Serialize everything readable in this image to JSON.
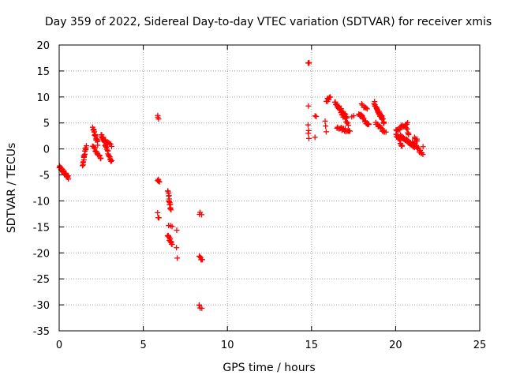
{
  "chart_data": {
    "type": "scatter",
    "title": "Day 359 of 2022, Sidereal Day-to-day VTEC variation (SDTVAR) for receiver xmis",
    "xlabel": "GPS time / hours",
    "ylabel": "SDTVAR / TECUs",
    "xlim": [
      0,
      25
    ],
    "ylim": [
      -35,
      20
    ],
    "xticks": [
      "0",
      "5",
      "10",
      "15",
      "20",
      "25"
    ],
    "yticks": [
      "-35",
      "-30",
      "-25",
      "-20",
      "-15",
      "-10",
      "-5",
      "0",
      "5",
      "10",
      "15",
      "20"
    ],
    "grid": true,
    "marker": "plus",
    "color": "#ff0000",
    "clusters": [
      {
        "x0": 0.0,
        "x1": 0.55,
        "y0": -3.5,
        "y1": -5.5,
        "n": 30
      },
      {
        "x0": 1.4,
        "x1": 1.6,
        "y0": -3.0,
        "y1": 0.5,
        "n": 16
      },
      {
        "x0": 2.0,
        "x1": 2.3,
        "y0": 4.0,
        "y1": 1.0,
        "n": 16
      },
      {
        "x0": 2.0,
        "x1": 2.5,
        "y0": 0.5,
        "y1": -2.0,
        "n": 16
      },
      {
        "x0": 2.5,
        "x1": 3.1,
        "y0": 3.0,
        "y1": -2.5,
        "n": 26
      },
      {
        "x0": 2.6,
        "x1": 3.1,
        "y0": 2.0,
        "y1": 0.5,
        "n": 10
      },
      {
        "x0": 5.85,
        "x1": 5.9,
        "y0": 6.2,
        "y1": 5.7,
        "n": 3
      },
      {
        "x0": 5.85,
        "x1": 5.95,
        "y0": -5.8,
        "y1": -6.6,
        "n": 5
      },
      {
        "x0": 5.85,
        "x1": 5.95,
        "y0": -12.5,
        "y1": -13.5,
        "n": 3
      },
      {
        "x0": 6.45,
        "x1": 6.65,
        "y0": -8.0,
        "y1": -11.8,
        "n": 14
      },
      {
        "x0": 6.5,
        "x1": 6.7,
        "y0": -14.5,
        "y1": -15.0,
        "n": 3
      },
      {
        "x0": 6.45,
        "x1": 6.7,
        "y0": -16.5,
        "y1": -18.5,
        "n": 12
      },
      {
        "x0": 7.0,
        "x1": 7.05,
        "y0": -15.5,
        "y1": -15.5,
        "n": 1
      },
      {
        "x0": 7.0,
        "x1": 7.05,
        "y0": -18.8,
        "y1": -18.8,
        "n": 1
      },
      {
        "x0": 7.0,
        "x1": 7.05,
        "y0": -21.0,
        "y1": -21.0,
        "n": 1
      },
      {
        "x0": 8.35,
        "x1": 8.45,
        "y0": -12.3,
        "y1": -12.7,
        "n": 3
      },
      {
        "x0": 8.3,
        "x1": 8.5,
        "y0": -20.8,
        "y1": -21.3,
        "n": 6
      },
      {
        "x0": 8.3,
        "x1": 8.45,
        "y0": -30.0,
        "y1": -30.6,
        "n": 4
      },
      {
        "x0": 14.8,
        "x1": 14.85,
        "y0": 16.8,
        "y1": 16.3,
        "n": 3
      },
      {
        "x0": 14.8,
        "x1": 14.85,
        "y0": 8.1,
        "y1": 8.1,
        "n": 1
      },
      {
        "x0": 14.8,
        "x1": 14.85,
        "y0": 4.8,
        "y1": 1.8,
        "n": 4
      },
      {
        "x0": 15.2,
        "x1": 15.3,
        "y0": 6.5,
        "y1": 6.5,
        "n": 2
      },
      {
        "x0": 15.2,
        "x1": 15.25,
        "y0": 2.2,
        "y1": 2.2,
        "n": 1
      },
      {
        "x0": 15.8,
        "x1": 15.9,
        "y0": 5.6,
        "y1": 3.5,
        "n": 3
      },
      {
        "x0": 15.9,
        "x1": 16.1,
        "y0": 9.3,
        "y1": 9.9,
        "n": 8
      },
      {
        "x0": 16.4,
        "x1": 17.1,
        "y0": 9.0,
        "y1": 6.0,
        "n": 22
      },
      {
        "x0": 16.5,
        "x1": 17.3,
        "y0": 4.0,
        "y1": 3.5,
        "n": 18
      },
      {
        "x0": 16.6,
        "x1": 17.2,
        "y0": 7.8,
        "y1": 4.8,
        "n": 14
      },
      {
        "x0": 17.4,
        "x1": 17.5,
        "y0": 6.2,
        "y1": 6.2,
        "n": 2
      },
      {
        "x0": 17.8,
        "x1": 18.4,
        "y0": 7.0,
        "y1": 4.5,
        "n": 20
      },
      {
        "x0": 18.0,
        "x1": 18.3,
        "y0": 8.5,
        "y1": 7.5,
        "n": 8
      },
      {
        "x0": 18.7,
        "x1": 19.3,
        "y0": 9.0,
        "y1": 5.0,
        "n": 24
      },
      {
        "x0": 18.8,
        "x1": 19.4,
        "y0": 5.0,
        "y1": 3.0,
        "n": 14
      },
      {
        "x0": 18.9,
        "x1": 19.2,
        "y0": 7.5,
        "y1": 6.0,
        "n": 10
      },
      {
        "x0": 20.0,
        "x1": 20.7,
        "y0": 3.5,
        "y1": 5.0,
        "n": 16
      },
      {
        "x0": 20.0,
        "x1": 20.4,
        "y0": 3.0,
        "y1": 0.5,
        "n": 14
      },
      {
        "x0": 20.3,
        "x1": 21.1,
        "y0": 2.5,
        "y1": 0.5,
        "n": 30
      },
      {
        "x0": 20.6,
        "x1": 20.8,
        "y0": 4.0,
        "y1": 3.0,
        "n": 6
      },
      {
        "x0": 21.0,
        "x1": 21.6,
        "y0": 1.5,
        "y1": -1.0,
        "n": 16
      },
      {
        "x0": 21.1,
        "x1": 21.3,
        "y0": 2.3,
        "y1": 1.5,
        "n": 6
      },
      {
        "x0": 21.6,
        "x1": 21.65,
        "y0": 0.5,
        "y1": 0.5,
        "n": 1
      }
    ]
  }
}
